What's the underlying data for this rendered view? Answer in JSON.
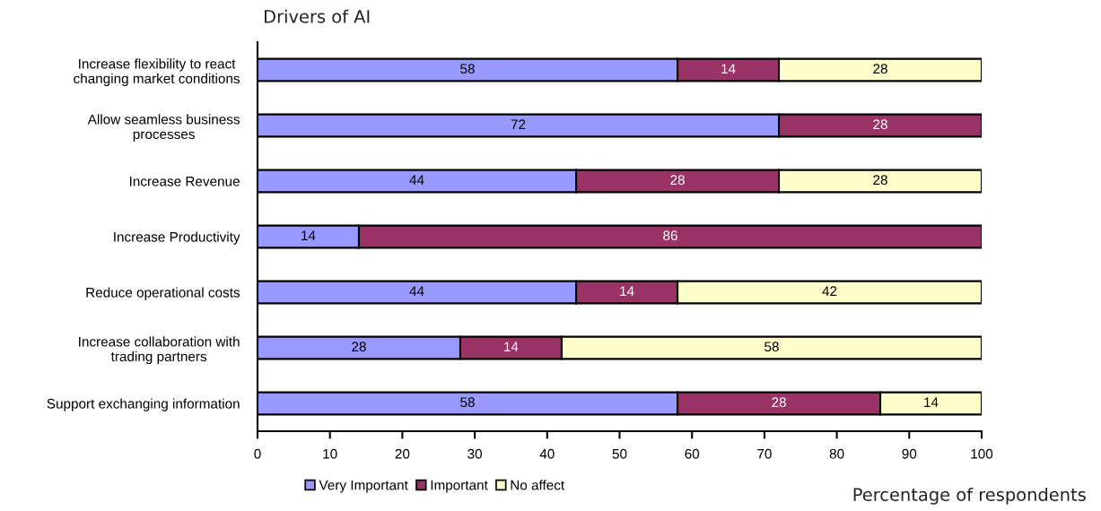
{
  "chart_data": {
    "type": "bar",
    "orientation": "horizontal",
    "stacked": true,
    "ylabel": "Drivers of AI",
    "xlabel": "Percentage of respondents",
    "categories": [
      "Increase flexibility to react\nchanging market conditions",
      "Allow seamless business\nprocesses",
      "Increase Revenue",
      "Increase Productivity",
      "Reduce operational costs",
      "Increase collaboration with\ntrading partners",
      "Support exchanging information"
    ],
    "series": [
      {
        "name": "Very Important",
        "color": "#9999ff",
        "values": [
          58,
          72,
          44,
          14,
          44,
          28,
          58
        ]
      },
      {
        "name": "Important",
        "color": "#993366",
        "values": [
          14,
          28,
          28,
          86,
          14,
          14,
          28
        ]
      },
      {
        "name": "No affect",
        "color": "#ffffcc",
        "values": [
          28,
          null,
          28,
          null,
          42,
          58,
          14
        ]
      }
    ],
    "xlim": [
      0,
      100
    ],
    "xticks": [
      0,
      10,
      20,
      30,
      40,
      50,
      60,
      70,
      80,
      90,
      100
    ],
    "data_labels": true,
    "grid": false,
    "legend": "bottom"
  }
}
